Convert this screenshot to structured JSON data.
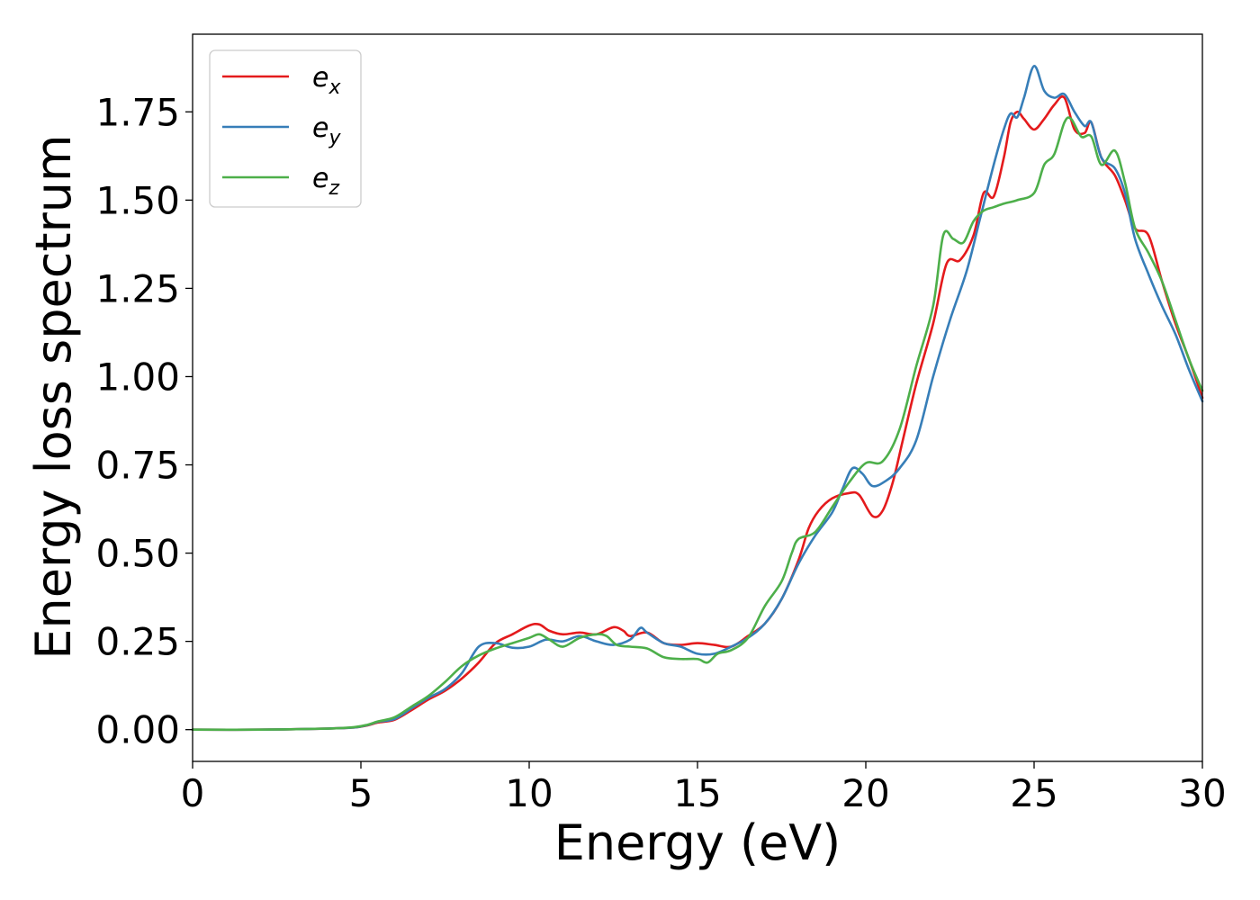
{
  "chart_data": {
    "type": "line",
    "title": "",
    "xlabel": "Energy (eV)",
    "ylabel": "Energy loss spectrum",
    "xlim": [
      0,
      30
    ],
    "ylim": [
      -0.09,
      1.97
    ],
    "xticks": [
      0,
      5,
      10,
      15,
      20,
      25,
      30
    ],
    "xtick_labels": [
      "0",
      "5",
      "10",
      "15",
      "20",
      "25",
      "30"
    ],
    "yticks": [
      0,
      0.25,
      0.5,
      0.75,
      1.0,
      1.25,
      1.5,
      1.75
    ],
    "ytick_labels": [
      "0.00",
      "0.25",
      "0.50",
      "0.75",
      "1.00",
      "1.25",
      "1.50",
      "1.75"
    ],
    "grid": false,
    "legend_position": "top-left",
    "series": [
      {
        "name": "e_x",
        "legend_base": "e",
        "legend_sub": "x",
        "color": "#e41a1c",
        "points": [
          [
            0,
            0
          ],
          [
            2,
            0
          ],
          [
            4,
            0.003
          ],
          [
            4.8,
            0.006
          ],
          [
            5.2,
            0.012
          ],
          [
            5.5,
            0.02
          ],
          [
            6,
            0.028
          ],
          [
            6.5,
            0.055
          ],
          [
            7,
            0.085
          ],
          [
            7.5,
            0.11
          ],
          [
            8,
            0.145
          ],
          [
            8.5,
            0.19
          ],
          [
            9,
            0.245
          ],
          [
            9.5,
            0.27
          ],
          [
            10,
            0.295
          ],
          [
            10.3,
            0.298
          ],
          [
            10.6,
            0.28
          ],
          [
            11,
            0.27
          ],
          [
            11.5,
            0.275
          ],
          [
            12,
            0.27
          ],
          [
            12.5,
            0.29
          ],
          [
            12.8,
            0.28
          ],
          [
            13,
            0.265
          ],
          [
            13.5,
            0.275
          ],
          [
            14,
            0.245
          ],
          [
            14.5,
            0.24
          ],
          [
            15,
            0.245
          ],
          [
            15.5,
            0.24
          ],
          [
            16,
            0.235
          ],
          [
            16.5,
            0.265
          ],
          [
            17,
            0.3
          ],
          [
            17.5,
            0.37
          ],
          [
            18,
            0.48
          ],
          [
            18.3,
            0.57
          ],
          [
            18.6,
            0.62
          ],
          [
            19,
            0.655
          ],
          [
            19.5,
            0.67
          ],
          [
            19.8,
            0.665
          ],
          [
            20.2,
            0.605
          ],
          [
            20.5,
            0.62
          ],
          [
            20.8,
            0.7
          ],
          [
            21.1,
            0.82
          ],
          [
            21.5,
            0.98
          ],
          [
            22,
            1.15
          ],
          [
            22.4,
            1.32
          ],
          [
            22.8,
            1.33
          ],
          [
            23.2,
            1.4
          ],
          [
            23.5,
            1.52
          ],
          [
            23.8,
            1.51
          ],
          [
            24.1,
            1.62
          ],
          [
            24.3,
            1.72
          ],
          [
            24.5,
            1.75
          ],
          [
            24.7,
            1.73
          ],
          [
            25,
            1.7
          ],
          [
            25.3,
            1.73
          ],
          [
            25.6,
            1.77
          ],
          [
            25.9,
            1.79
          ],
          [
            26.2,
            1.7
          ],
          [
            26.5,
            1.69
          ],
          [
            26.7,
            1.72
          ],
          [
            27,
            1.62
          ],
          [
            27.4,
            1.57
          ],
          [
            27.7,
            1.5
          ],
          [
            28,
            1.42
          ],
          [
            28.4,
            1.4
          ],
          [
            28.8,
            1.27
          ],
          [
            29.2,
            1.15
          ],
          [
            29.6,
            1.05
          ],
          [
            30,
            0.94
          ]
        ]
      },
      {
        "name": "e_y",
        "legend_base": "e",
        "legend_sub": "y",
        "color": "#377eb8",
        "points": [
          [
            0,
            0
          ],
          [
            2,
            0
          ],
          [
            4,
            0.003
          ],
          [
            4.8,
            0.006
          ],
          [
            5.2,
            0.013
          ],
          [
            5.5,
            0.022
          ],
          [
            6,
            0.03
          ],
          [
            6.5,
            0.06
          ],
          [
            7,
            0.09
          ],
          [
            7.5,
            0.115
          ],
          [
            8,
            0.16
          ],
          [
            8.5,
            0.235
          ],
          [
            9,
            0.245
          ],
          [
            9.5,
            0.232
          ],
          [
            10,
            0.235
          ],
          [
            10.5,
            0.255
          ],
          [
            11,
            0.25
          ],
          [
            11.5,
            0.265
          ],
          [
            12,
            0.25
          ],
          [
            12.5,
            0.24
          ],
          [
            13,
            0.255
          ],
          [
            13.3,
            0.288
          ],
          [
            13.5,
            0.275
          ],
          [
            14,
            0.245
          ],
          [
            14.5,
            0.235
          ],
          [
            15,
            0.215
          ],
          [
            15.5,
            0.215
          ],
          [
            16,
            0.235
          ],
          [
            16.5,
            0.26
          ],
          [
            17,
            0.3
          ],
          [
            17.5,
            0.37
          ],
          [
            18,
            0.47
          ],
          [
            18.5,
            0.55
          ],
          [
            19,
            0.615
          ],
          [
            19.3,
            0.68
          ],
          [
            19.6,
            0.74
          ],
          [
            19.9,
            0.725
          ],
          [
            20.2,
            0.69
          ],
          [
            20.6,
            0.705
          ],
          [
            21,
            0.74
          ],
          [
            21.5,
            0.82
          ],
          [
            22,
            1.0
          ],
          [
            22.5,
            1.16
          ],
          [
            23,
            1.3
          ],
          [
            23.4,
            1.45
          ],
          [
            23.8,
            1.6
          ],
          [
            24.1,
            1.7
          ],
          [
            24.3,
            1.745
          ],
          [
            24.5,
            1.735
          ],
          [
            24.7,
            1.79
          ],
          [
            25,
            1.88
          ],
          [
            25.3,
            1.81
          ],
          [
            25.6,
            1.79
          ],
          [
            25.9,
            1.8
          ],
          [
            26.2,
            1.75
          ],
          [
            26.5,
            1.71
          ],
          [
            26.7,
            1.72
          ],
          [
            27,
            1.62
          ],
          [
            27.4,
            1.59
          ],
          [
            27.7,
            1.52
          ],
          [
            28,
            1.39
          ],
          [
            28.4,
            1.29
          ],
          [
            28.8,
            1.2
          ],
          [
            29.2,
            1.12
          ],
          [
            29.6,
            1.02
          ],
          [
            30,
            0.93
          ]
        ]
      },
      {
        "name": "e_z",
        "legend_base": "e",
        "legend_sub": "z",
        "color": "#4daf4a",
        "points": [
          [
            0,
            0
          ],
          [
            2,
            0
          ],
          [
            4,
            0.003
          ],
          [
            4.8,
            0.007
          ],
          [
            5.2,
            0.014
          ],
          [
            5.5,
            0.023
          ],
          [
            6,
            0.035
          ],
          [
            6.5,
            0.065
          ],
          [
            7,
            0.095
          ],
          [
            7.5,
            0.135
          ],
          [
            8,
            0.18
          ],
          [
            8.5,
            0.21
          ],
          [
            9,
            0.23
          ],
          [
            9.5,
            0.245
          ],
          [
            10,
            0.26
          ],
          [
            10.3,
            0.27
          ],
          [
            10.6,
            0.255
          ],
          [
            11,
            0.235
          ],
          [
            11.5,
            0.26
          ],
          [
            12,
            0.27
          ],
          [
            12.3,
            0.265
          ],
          [
            12.6,
            0.24
          ],
          [
            13,
            0.235
          ],
          [
            13.5,
            0.23
          ],
          [
            14,
            0.205
          ],
          [
            14.5,
            0.2
          ],
          [
            15,
            0.2
          ],
          [
            15.3,
            0.19
          ],
          [
            15.6,
            0.215
          ],
          [
            16,
            0.225
          ],
          [
            16.5,
            0.26
          ],
          [
            17,
            0.35
          ],
          [
            17.5,
            0.42
          ],
          [
            17.8,
            0.5
          ],
          [
            18,
            0.54
          ],
          [
            18.5,
            0.56
          ],
          [
            19,
            0.63
          ],
          [
            19.5,
            0.7
          ],
          [
            20,
            0.755
          ],
          [
            20.5,
            0.76
          ],
          [
            21,
            0.85
          ],
          [
            21.5,
            1.03
          ],
          [
            22,
            1.2
          ],
          [
            22.3,
            1.4
          ],
          [
            22.6,
            1.39
          ],
          [
            22.9,
            1.38
          ],
          [
            23.2,
            1.44
          ],
          [
            23.5,
            1.47
          ],
          [
            23.8,
            1.48
          ],
          [
            24.1,
            1.49
          ],
          [
            24.5,
            1.5
          ],
          [
            25,
            1.52
          ],
          [
            25.3,
            1.6
          ],
          [
            25.6,
            1.63
          ],
          [
            25.9,
            1.72
          ],
          [
            26.1,
            1.73
          ],
          [
            26.4,
            1.68
          ],
          [
            26.7,
            1.68
          ],
          [
            27,
            1.6
          ],
          [
            27.4,
            1.64
          ],
          [
            27.7,
            1.55
          ],
          [
            28,
            1.42
          ],
          [
            28.4,
            1.35
          ],
          [
            28.8,
            1.27
          ],
          [
            29.2,
            1.16
          ],
          [
            29.6,
            1.05
          ],
          [
            30,
            0.96
          ]
        ]
      }
    ]
  }
}
